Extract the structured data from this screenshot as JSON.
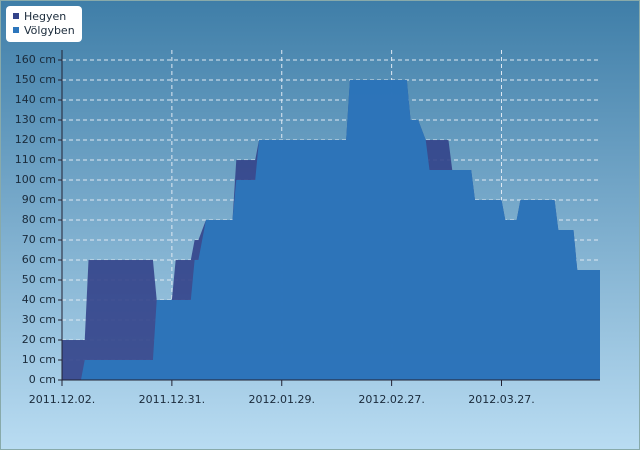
{
  "chart_data": {
    "type": "area",
    "x": [
      "2011.12.02.",
      "2011.12.07.",
      "2011.12.08.",
      "2011.12.09.",
      "2011.12.26.",
      "2011.12.27.",
      "2011.12.31.",
      "2012.01.01.",
      "2012.01.05.",
      "2012.01.06.",
      "2012.01.07.",
      "2012.01.09.",
      "2012.01.16.",
      "2012.01.17.",
      "2012.01.22.",
      "2012.01.23.",
      "2012.02.15.",
      "2012.02.16.",
      "2012.03.02.",
      "2012.03.03.",
      "2012.03.05.",
      "2012.03.07.",
      "2012.03.08.",
      "2012.03.13.",
      "2012.03.14.",
      "2012.03.19.",
      "2012.03.20.",
      "2012.03.27.",
      "2012.03.28.",
      "2012.03.31.",
      "2012.04.01.",
      "2012.04.10.",
      "2012.04.11.",
      "2012.04.15.",
      "2012.04.16.",
      "2012.04.22."
    ],
    "series": [
      {
        "name": "Hegyen",
        "color": "#33438a",
        "values": [
          20,
          20,
          20,
          60,
          60,
          40,
          40,
          60,
          60,
          70,
          70,
          80,
          80,
          110,
          110,
          120,
          120,
          150,
          150,
          130,
          130,
          120,
          120,
          120,
          105,
          105,
          90,
          90,
          80,
          80,
          90,
          90,
          75,
          75,
          55,
          55
        ]
      },
      {
        "name": "Völgyben",
        "color": "#2c76bc",
        "values": [
          0,
          0,
          10,
          10,
          10,
          40,
          40,
          40,
          40,
          60,
          60,
          80,
          80,
          100,
          100,
          120,
          120,
          150,
          150,
          130,
          130,
          120,
          105,
          105,
          105,
          105,
          90,
          90,
          80,
          80,
          90,
          90,
          75,
          75,
          55,
          55
        ]
      }
    ],
    "xlim": [
      "2011.12.02.",
      "2012.04.22."
    ],
    "xticks": [
      "2011.12.02.",
      "2011.12.31.",
      "2012.01.29.",
      "2012.02.27.",
      "2012.03.27."
    ],
    "ylim": [
      0,
      160
    ],
    "yticks": [
      {
        "value": 0,
        "label": "0 cm"
      },
      {
        "value": 10,
        "label": "10 cm"
      },
      {
        "value": 20,
        "label": "20 cm"
      },
      {
        "value": 30,
        "label": "30 cm"
      },
      {
        "value": 40,
        "label": "40 cm"
      },
      {
        "value": 50,
        "label": "50 cm"
      },
      {
        "value": 60,
        "label": "60 cm"
      },
      {
        "value": 70,
        "label": "70 cm"
      },
      {
        "value": 80,
        "label": "80 cm"
      },
      {
        "value": 90,
        "label": "90 cm"
      },
      {
        "value": 100,
        "label": "100 cm"
      },
      {
        "value": 110,
        "label": "110 cm"
      },
      {
        "value": 120,
        "label": "120 cm"
      },
      {
        "value": 130,
        "label": "130 cm"
      },
      {
        "value": 140,
        "label": "140 cm"
      },
      {
        "value": 150,
        "label": "150 cm"
      },
      {
        "value": 160,
        "label": "160 cm"
      }
    ],
    "grid": true,
    "legend": "top-left"
  }
}
